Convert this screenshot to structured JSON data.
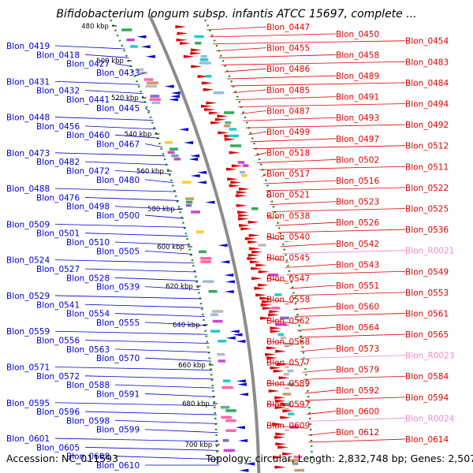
{
  "header": {
    "title": "Bifidobacterium longum subsp. infantis ATCC 15697, complete ..."
  },
  "footer": {
    "accession": "Accession: NC_011593",
    "summary": "Topology: circular, Length: 2,832,748 bp; Genes: 2,507"
  },
  "colors": {
    "left_genes": "#0000cc",
    "right_genes": "#dd0000",
    "rna_genes": "#ee88cc",
    "backbone": "#8c8c8c",
    "tick_dots": "#228b22"
  },
  "scale_ticks": [
    "480 kbp",
    "500 kbp",
    "520 kbp",
    "540 kbp",
    "560 kbp",
    "580 kbp",
    "600 kbp",
    "620 kbp",
    "640 kbp",
    "660 kbp",
    "680 kbp",
    "700 kbp"
  ],
  "left_labels": [
    "Blon_0419",
    "Blon_0418",
    "Blon_0427",
    "Blon_0433",
    "Blon_0431",
    "Blon_0432",
    "Blon_0441",
    "Blon_0445",
    "Blon_0448",
    "Blon_0456",
    "Blon_0460",
    "Blon_0467",
    "Blon_0473",
    "Blon_0482",
    "Blon_0472",
    "Blon_0480",
    "Blon_0488",
    "Blon_0476",
    "Blon_0498",
    "Blon_0500",
    "Blon_0509",
    "Blon_0501",
    "Blon_0510",
    "Blon_0505",
    "Blon_0524",
    "Blon_0527",
    "Blon_0528",
    "Blon_0539",
    "Blon_0529",
    "Blon_0541",
    "Blon_0554",
    "Blon_0555",
    "Blon_0559",
    "Blon_0556",
    "Blon_0563",
    "Blon_0570",
    "Blon_0571",
    "Blon_0572",
    "Blon_0588",
    "Blon_0591",
    "Blon_0595",
    "Blon_0596",
    "Blon_0598",
    "Blon_0599",
    "Blon_0601",
    "Blon_0605",
    "Blon_0608",
    "Blon_0610"
  ],
  "right_labels": [
    "Blon_0447",
    "Blon_0450",
    "Blon_0454",
    "Blon_0455",
    "Blon_0458",
    "Blon_0483",
    "Blon_0486",
    "Blon_0489",
    "Blon_0484",
    "Blon_0485",
    "Blon_0491",
    "Blon_0494",
    "Blon_0487",
    "Blon_0493",
    "Blon_0492",
    "Blon_0499",
    "Blon_0497",
    "Blon_0512",
    "Blon_0518",
    "Blon_0502",
    "Blon_0511",
    "Blon_0517",
    "Blon_0516",
    "Blon_0522",
    "Blon_0521",
    "Blon_0523",
    "Blon_0525",
    "Blon_0538",
    "Blon_0526",
    "Blon_0536",
    "Blon_0540",
    "Blon_0542",
    "Blon_R0021",
    "Blon_0545",
    "Blon_0543",
    "Blon_0549",
    "Blon_0547",
    "Blon_0551",
    "Blon_0553",
    "Blon_0558",
    "Blon_0560",
    "Blon_0561",
    "Blon_0562",
    "Blon_0564",
    "Blon_0565",
    "Blon_0568",
    "Blon_0573",
    "Blon_R0023",
    "Blon_0577",
    "Blon_0579",
    "Blon_0584",
    "Blon_0589",
    "Blon_0592",
    "Blon_0594",
    "Blon_0597",
    "Blon_0600",
    "Blon_R0024",
    "Blon_0609",
    "Blon_0612",
    "Blon_0614"
  ]
}
